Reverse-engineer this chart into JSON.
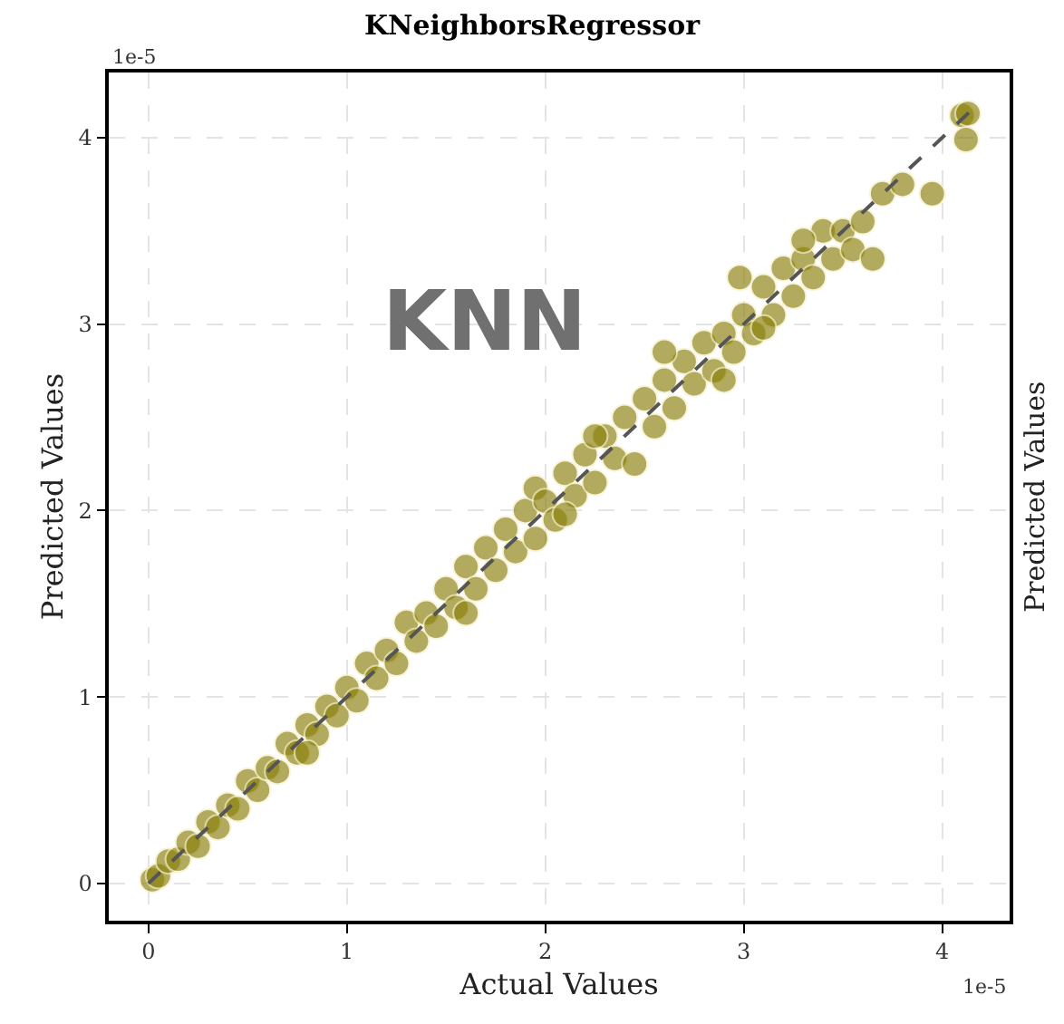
{
  "chart_data": {
    "type": "scatter",
    "title": "KNeighborsRegressor",
    "xlabel": "Actual Values",
    "ylabel": "Predicted Values",
    "annotations": [
      "KNN",
      "1e-5",
      "1e-5",
      "Predicted Values"
    ],
    "xlim": [
      -0.2,
      4.34
    ],
    "ylim": [
      -0.2,
      4.35
    ],
    "xticks": [
      0,
      1,
      2,
      3,
      4
    ],
    "yticks": [
      0,
      1,
      2,
      3,
      4
    ],
    "grid": true,
    "marker": "circle",
    "series": [
      {
        "color": "#8a7f0a",
        "x": [
          0.02,
          0.05,
          0.1,
          0.15,
          0.2,
          0.25,
          0.3,
          0.35,
          0.4,
          0.45,
          0.5,
          0.55,
          0.6,
          0.65,
          0.7,
          0.75,
          0.8,
          0.85,
          0.9,
          0.95,
          1.0,
          1.05,
          1.1,
          1.15,
          1.2,
          1.25,
          1.3,
          1.35,
          1.4,
          1.45,
          1.5,
          1.55,
          1.6,
          1.65,
          1.7,
          1.75,
          1.8,
          1.85,
          1.9,
          1.95,
          1.95,
          2.0,
          2.05,
          2.1,
          2.15,
          2.2,
          2.25,
          2.3,
          2.35,
          2.4,
          2.45,
          2.5,
          2.55,
          2.6,
          2.65,
          2.7,
          2.75,
          2.8,
          2.85,
          2.9,
          2.95,
          2.98,
          3.0,
          3.05,
          3.1,
          3.15,
          3.2,
          3.25,
          3.3,
          3.35,
          3.4,
          3.45,
          3.5,
          3.55,
          3.6,
          3.65,
          3.7,
          3.8,
          3.95,
          4.1,
          4.13,
          4.12,
          0.8,
          1.6,
          2.1,
          2.25,
          2.6,
          2.9,
          3.1,
          3.3
        ],
        "values": [
          0.02,
          0.04,
          0.12,
          0.13,
          0.22,
          0.2,
          0.33,
          0.3,
          0.42,
          0.4,
          0.55,
          0.5,
          0.62,
          0.6,
          0.75,
          0.7,
          0.85,
          0.8,
          0.95,
          0.9,
          1.05,
          0.98,
          1.18,
          1.1,
          1.25,
          1.18,
          1.4,
          1.3,
          1.45,
          1.38,
          1.58,
          1.48,
          1.7,
          1.58,
          1.8,
          1.68,
          1.9,
          1.78,
          2.0,
          1.85,
          2.12,
          2.05,
          1.95,
          2.2,
          2.08,
          2.3,
          2.15,
          2.4,
          2.28,
          2.5,
          2.25,
          2.6,
          2.45,
          2.7,
          2.55,
          2.8,
          2.68,
          2.9,
          2.75,
          2.95,
          2.85,
          3.25,
          3.05,
          2.95,
          3.2,
          3.05,
          3.3,
          3.15,
          3.35,
          3.25,
          3.5,
          3.35,
          3.5,
          3.4,
          3.55,
          3.35,
          3.7,
          3.75,
          3.7,
          4.12,
          4.13,
          3.99,
          0.7,
          1.45,
          1.98,
          2.4,
          2.85,
          2.7,
          2.98,
          3.45
        ]
      },
      {
        "type": "line",
        "color": "#555555",
        "line_style": "dashed",
        "marker": "none",
        "x": [
          0,
          4.15
        ],
        "values": [
          0,
          4.15
        ]
      }
    ]
  }
}
